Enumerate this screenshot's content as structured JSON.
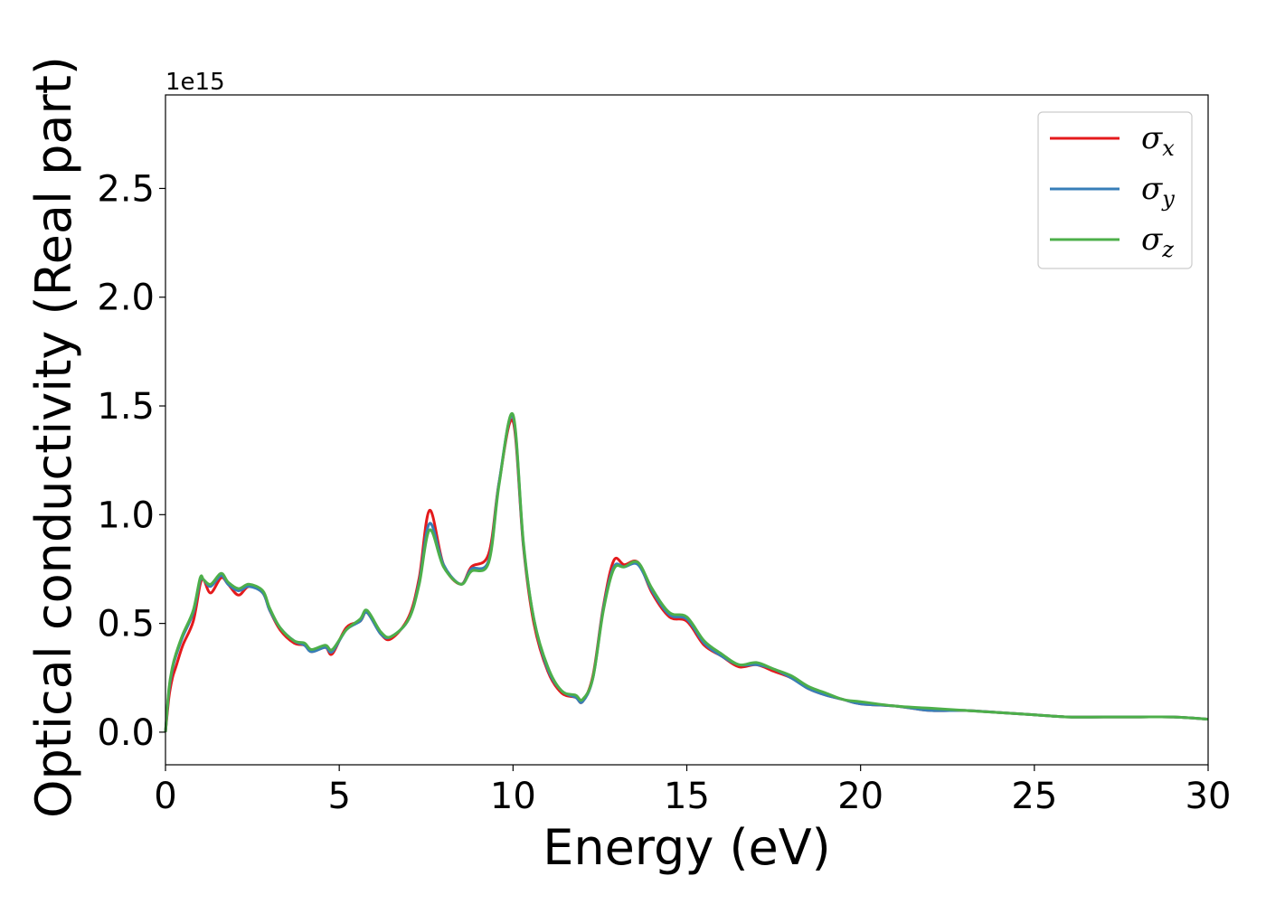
{
  "chart_data": {
    "type": "line",
    "title": "",
    "xlabel": "Energy (eV)",
    "ylabel": "Optical conductivity (Real part)",
    "y_offset_label": "1e15",
    "xlim": [
      0,
      30
    ],
    "ylim": [
      -0.15,
      2.93
    ],
    "xticks": [
      0,
      5,
      10,
      15,
      20,
      25,
      30
    ],
    "xtick_labels": [
      "0",
      "5",
      "10",
      "15",
      "20",
      "25",
      "30"
    ],
    "yticks": [
      0.0,
      0.5,
      1.0,
      1.5,
      2.0,
      2.5
    ],
    "ytick_labels": [
      "0.0",
      "0.5",
      "1.0",
      "1.5",
      "2.0",
      "2.5"
    ],
    "grid": false,
    "legend_position": "top-right",
    "series": [
      {
        "name": "σx",
        "symbol": "σ",
        "subscript": "x",
        "color": "#e41a1c",
        "x": [
          0,
          0.1,
          0.2,
          0.3,
          0.5,
          0.8,
          1.0,
          1.1,
          1.3,
          1.6,
          1.8,
          2.1,
          2.4,
          2.8,
          3.0,
          3.3,
          3.7,
          4.0,
          4.2,
          4.6,
          4.8,
          5.2,
          5.6,
          5.8,
          6.2,
          6.5,
          7.0,
          7.3,
          7.6,
          8.0,
          8.5,
          8.8,
          9.3,
          9.6,
          10.0,
          10.3,
          10.6,
          11.0,
          11.4,
          11.8,
          12.0,
          12.3,
          12.6,
          12.9,
          13.2,
          13.6,
          14.0,
          14.5,
          15.0,
          15.5,
          16.0,
          16.5,
          17.0,
          17.5,
          18.0,
          18.5,
          19.0,
          19.5,
          20.0,
          21.0,
          22.0,
          23.0,
          24.0,
          25.0,
          26.0,
          27.0,
          28.0,
          29.0,
          30.0
        ],
        "y": [
          0.0,
          0.16,
          0.25,
          0.3,
          0.4,
          0.51,
          0.68,
          0.7,
          0.64,
          0.71,
          0.68,
          0.63,
          0.67,
          0.64,
          0.56,
          0.47,
          0.41,
          0.4,
          0.37,
          0.39,
          0.36,
          0.48,
          0.51,
          0.55,
          0.45,
          0.43,
          0.53,
          0.71,
          1.02,
          0.77,
          0.68,
          0.76,
          0.82,
          1.15,
          1.43,
          0.85,
          0.5,
          0.28,
          0.18,
          0.16,
          0.14,
          0.26,
          0.58,
          0.79,
          0.77,
          0.78,
          0.64,
          0.53,
          0.51,
          0.4,
          0.35,
          0.3,
          0.31,
          0.28,
          0.25,
          0.2,
          0.17,
          0.15,
          0.13,
          0.12,
          0.1,
          0.1,
          0.09,
          0.08,
          0.07,
          0.07,
          0.07,
          0.07,
          0.06
        ]
      },
      {
        "name": "σy",
        "symbol": "σ",
        "subscript": "y",
        "color": "#377eb8",
        "x": [
          0,
          0.1,
          0.2,
          0.3,
          0.5,
          0.8,
          1.0,
          1.1,
          1.3,
          1.6,
          1.8,
          2.1,
          2.4,
          2.8,
          3.0,
          3.3,
          3.7,
          4.0,
          4.2,
          4.6,
          4.8,
          5.2,
          5.6,
          5.8,
          6.2,
          6.5,
          7.0,
          7.3,
          7.6,
          8.0,
          8.5,
          8.8,
          9.3,
          9.6,
          10.0,
          10.3,
          10.6,
          11.0,
          11.4,
          11.8,
          12.0,
          12.3,
          12.6,
          12.9,
          13.2,
          13.6,
          14.0,
          14.5,
          15.0,
          15.5,
          16.0,
          16.5,
          17.0,
          17.5,
          18.0,
          18.5,
          19.0,
          19.5,
          20.0,
          21.0,
          22.0,
          23.0,
          24.0,
          25.0,
          26.0,
          27.0,
          28.0,
          29.0,
          30.0
        ],
        "y": [
          0.0,
          0.19,
          0.29,
          0.35,
          0.44,
          0.55,
          0.7,
          0.7,
          0.67,
          0.72,
          0.68,
          0.65,
          0.67,
          0.64,
          0.56,
          0.48,
          0.42,
          0.4,
          0.37,
          0.39,
          0.37,
          0.47,
          0.51,
          0.55,
          0.45,
          0.44,
          0.52,
          0.69,
          0.96,
          0.77,
          0.68,
          0.75,
          0.79,
          1.15,
          1.45,
          0.86,
          0.52,
          0.29,
          0.19,
          0.16,
          0.14,
          0.25,
          0.57,
          0.76,
          0.76,
          0.77,
          0.65,
          0.54,
          0.52,
          0.41,
          0.35,
          0.31,
          0.31,
          0.29,
          0.25,
          0.2,
          0.17,
          0.15,
          0.13,
          0.12,
          0.1,
          0.1,
          0.09,
          0.08,
          0.07,
          0.07,
          0.07,
          0.07,
          0.06
        ]
      },
      {
        "name": "σz",
        "symbol": "σ",
        "subscript": "z",
        "color": "#4daf4a",
        "x": [
          0,
          0.1,
          0.2,
          0.3,
          0.5,
          0.8,
          1.0,
          1.1,
          1.3,
          1.6,
          1.8,
          2.1,
          2.4,
          2.8,
          3.0,
          3.3,
          3.7,
          4.0,
          4.2,
          4.6,
          4.8,
          5.2,
          5.6,
          5.8,
          6.2,
          6.5,
          7.0,
          7.3,
          7.6,
          8.0,
          8.5,
          8.8,
          9.3,
          9.6,
          10.0,
          10.3,
          10.6,
          11.0,
          11.4,
          11.8,
          12.0,
          12.3,
          12.6,
          12.9,
          13.2,
          13.6,
          14.0,
          14.5,
          15.0,
          15.5,
          16.0,
          16.5,
          17.0,
          17.5,
          18.0,
          18.5,
          19.0,
          19.5,
          20.0,
          21.0,
          22.0,
          23.0,
          24.0,
          25.0,
          26.0,
          27.0,
          28.0,
          29.0,
          30.0
        ],
        "y": [
          0.0,
          0.2,
          0.3,
          0.36,
          0.45,
          0.56,
          0.71,
          0.7,
          0.68,
          0.73,
          0.69,
          0.66,
          0.68,
          0.65,
          0.57,
          0.48,
          0.42,
          0.41,
          0.38,
          0.4,
          0.38,
          0.47,
          0.52,
          0.56,
          0.46,
          0.44,
          0.52,
          0.68,
          0.93,
          0.76,
          0.68,
          0.74,
          0.78,
          1.14,
          1.46,
          0.87,
          0.52,
          0.3,
          0.19,
          0.17,
          0.15,
          0.25,
          0.56,
          0.75,
          0.76,
          0.78,
          0.66,
          0.55,
          0.53,
          0.42,
          0.36,
          0.31,
          0.32,
          0.29,
          0.26,
          0.21,
          0.18,
          0.15,
          0.14,
          0.12,
          0.11,
          0.1,
          0.09,
          0.08,
          0.07,
          0.07,
          0.07,
          0.07,
          0.06
        ]
      }
    ]
  }
}
